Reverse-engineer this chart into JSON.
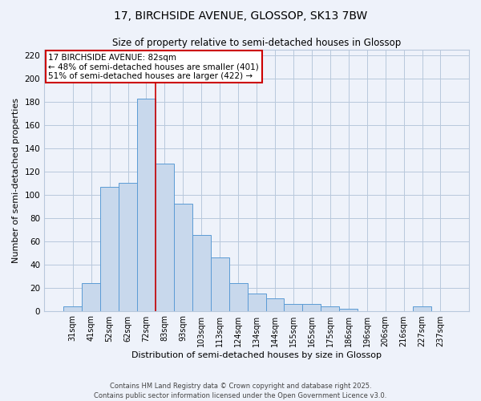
{
  "title": "17, BIRCHSIDE AVENUE, GLOSSOP, SK13 7BW",
  "subtitle": "Size of property relative to semi-detached houses in Glossop",
  "xlabel": "Distribution of semi-detached houses by size in Glossop",
  "ylabel": "Number of semi-detached properties",
  "bar_color": "#c8d8ec",
  "bar_edge_color": "#5b9bd5",
  "background_color": "#eef2fa",
  "grid_color": "#b8c8dc",
  "categories": [
    "31sqm",
    "41sqm",
    "52sqm",
    "62sqm",
    "72sqm",
    "83sqm",
    "93sqm",
    "103sqm",
    "113sqm",
    "124sqm",
    "134sqm",
    "144sqm",
    "155sqm",
    "165sqm",
    "175sqm",
    "186sqm",
    "196sqm",
    "206sqm",
    "216sqm",
    "227sqm",
    "237sqm"
  ],
  "values": [
    4,
    24,
    107,
    110,
    183,
    127,
    92,
    65,
    46,
    24,
    15,
    11,
    6,
    6,
    4,
    2,
    0,
    0,
    0,
    4,
    0
  ],
  "vline_x_index": 4,
  "vline_color": "#cc0000",
  "annotation_title": "17 BIRCHSIDE AVENUE: 82sqm",
  "annotation_line1": "← 48% of semi-detached houses are smaller (401)",
  "annotation_line2": "51% of semi-detached houses are larger (422) →",
  "annotation_box_color": "#ffffff",
  "annotation_box_edge": "#cc0000",
  "ylim": [
    0,
    225
  ],
  "yticks": [
    0,
    20,
    40,
    60,
    80,
    100,
    120,
    140,
    160,
    180,
    200,
    220
  ],
  "footer1": "Contains HM Land Registry data © Crown copyright and database right 2025.",
  "footer2": "Contains public sector information licensed under the Open Government Licence v3.0."
}
